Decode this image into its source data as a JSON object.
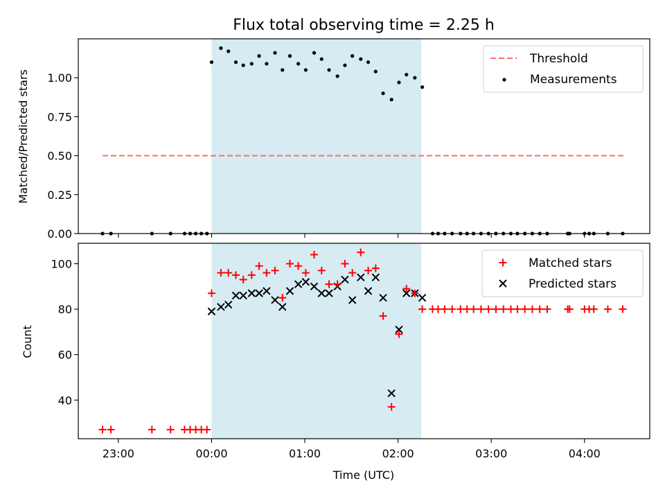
{
  "chart_data": [
    {
      "type": "scatter",
      "title": "Flux total observing time = 2.25 h",
      "xlabel": "",
      "ylabel": "Matched/Predicted stars",
      "xunit": "hours relative to 00:00 UTC",
      "xlim": [
        -1.43,
        4.7
      ],
      "ylim": [
        0,
        1.25
      ],
      "yticks": [
        0.0,
        0.25,
        0.5,
        0.75,
        1.0
      ],
      "ytick_labels": [
        "0.00",
        "0.25",
        "0.50",
        "0.75",
        "1.00"
      ],
      "observing_window": [
        0.0,
        2.25
      ],
      "threshold": {
        "name": "Threshold",
        "y": 0.5,
        "x_range": [
          -1.17,
          4.42
        ],
        "color": "#ff6b6b"
      },
      "legend": {
        "position": "top-right",
        "entries": [
          "Threshold",
          "Measurements"
        ]
      },
      "series": [
        {
          "name": "Measurements",
          "color": "#000000",
          "x": [
            -1.17,
            -1.08,
            -0.64,
            -0.44,
            -0.29,
            -0.23,
            -0.17,
            -0.11,
            -0.05,
            0.0,
            0.1,
            0.18,
            0.26,
            0.34,
            0.43,
            0.51,
            0.59,
            0.68,
            0.76,
            0.84,
            0.93,
            1.01,
            1.1,
            1.18,
            1.26,
            1.35,
            1.43,
            1.51,
            1.6,
            1.68,
            1.76,
            1.84,
            1.93,
            2.01,
            2.09,
            2.18,
            2.26,
            2.37,
            2.43,
            2.5,
            2.58,
            2.67,
            2.74,
            2.81,
            2.89,
            2.97,
            3.05,
            3.13,
            3.21,
            3.28,
            3.36,
            3.44,
            3.52,
            3.6,
            3.82,
            3.84,
            4.0,
            4.05,
            4.1,
            4.25,
            4.41
          ],
          "y": [
            0,
            0,
            0,
            0,
            0,
            0,
            0,
            0,
            0,
            1.1,
            1.19,
            1.17,
            1.1,
            1.08,
            1.09,
            1.14,
            1.09,
            1.16,
            1.05,
            1.14,
            1.09,
            1.05,
            1.16,
            1.12,
            1.05,
            1.01,
            1.08,
            1.14,
            1.12,
            1.1,
            1.04,
            0.9,
            0.86,
            0.97,
            1.02,
            1.0,
            0.94,
            0,
            0,
            0,
            0,
            0,
            0,
            0,
            0,
            0,
            0,
            0,
            0,
            0,
            0,
            0,
            0,
            0,
            0,
            0,
            0,
            0,
            0,
            0,
            0
          ]
        }
      ]
    },
    {
      "type": "scatter",
      "title": "",
      "xlabel": "Time (UTC)",
      "ylabel": "Count",
      "xunit": "hours relative to 00:00 UTC",
      "xlim": [
        -1.43,
        4.7
      ],
      "ylim": [
        23,
        109
      ],
      "xticks": [
        -1,
        0,
        1,
        2,
        3,
        4
      ],
      "xtick_labels": [
        "23:00",
        "00:00",
        "01:00",
        "02:00",
        "03:00",
        "04:00"
      ],
      "yticks": [
        40,
        60,
        80,
        100
      ],
      "ytick_labels": [
        "40",
        "60",
        "80",
        "100"
      ],
      "observing_window": [
        0.0,
        2.25
      ],
      "legend": {
        "position": "top-right",
        "entries": [
          "Matched stars",
          "Predicted stars"
        ]
      },
      "series": [
        {
          "name": "Matched stars",
          "marker": "plus",
          "color": "#ff0000",
          "x": [
            -1.17,
            -1.08,
            -0.64,
            -0.44,
            -0.29,
            -0.23,
            -0.17,
            -0.11,
            -0.05,
            0.0,
            0.1,
            0.18,
            0.26,
            0.34,
            0.43,
            0.51,
            0.59,
            0.68,
            0.76,
            0.84,
            0.93,
            1.01,
            1.1,
            1.18,
            1.26,
            1.35,
            1.43,
            1.51,
            1.6,
            1.68,
            1.76,
            1.84,
            1.93,
            2.01,
            2.09,
            2.18,
            2.26,
            2.37,
            2.43,
            2.5,
            2.58,
            2.67,
            2.74,
            2.81,
            2.89,
            2.97,
            3.05,
            3.13,
            3.21,
            3.28,
            3.36,
            3.44,
            3.52,
            3.6,
            3.82,
            3.84,
            4.0,
            4.05,
            4.1,
            4.25,
            4.41
          ],
          "y": [
            27,
            27,
            27,
            27,
            27,
            27,
            27,
            27,
            27,
            87,
            96,
            96,
            95,
            93,
            95,
            99,
            96,
            97,
            85,
            100,
            99,
            96,
            104,
            97,
            91,
            91,
            100,
            96,
            105,
            97,
            98,
            77,
            37,
            69,
            89,
            87,
            80,
            80,
            80,
            80,
            80,
            80,
            80,
            80,
            80,
            80,
            80,
            80,
            80,
            80,
            80,
            80,
            80,
            80,
            80,
            80,
            80,
            80,
            80,
            80,
            80
          ]
        },
        {
          "name": "Predicted stars",
          "marker": "x",
          "color": "#000000",
          "x": [
            0.0,
            0.1,
            0.18,
            0.26,
            0.34,
            0.43,
            0.51,
            0.59,
            0.68,
            0.76,
            0.84,
            0.93,
            1.01,
            1.1,
            1.18,
            1.26,
            1.35,
            1.43,
            1.51,
            1.6,
            1.68,
            1.76,
            1.84,
            1.93,
            2.01,
            2.09,
            2.18,
            2.26
          ],
          "y": [
            79,
            81,
            82,
            86,
            86,
            87,
            87,
            88,
            84,
            81,
            88,
            91,
            92,
            90,
            87,
            87,
            90,
            93,
            84,
            94,
            88,
            94,
            85,
            43,
            71,
            87,
            87,
            85
          ]
        }
      ]
    }
  ]
}
